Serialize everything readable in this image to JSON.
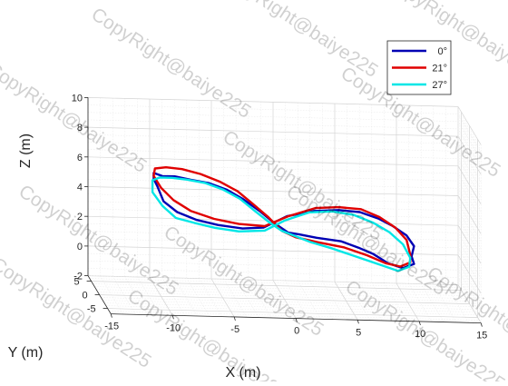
{
  "chart_data": {
    "type": "line",
    "projection": "3d",
    "xlabel": "X (m)",
    "ylabel": "Y (m)",
    "zlabel": "Z (m)",
    "xlim": [
      -15,
      15
    ],
    "ylim": [
      -7,
      7
    ],
    "zlim": [
      -2,
      10
    ],
    "xticks": [
      -15,
      -10,
      -5,
      0,
      5,
      10,
      15
    ],
    "yticks": [
      -5,
      0,
      5
    ],
    "zticks": [
      -2,
      0,
      2,
      4,
      6,
      8,
      10
    ],
    "grid": true,
    "minor_grid": true,
    "legend_position": "top-right",
    "series": [
      {
        "name": "0°",
        "color": "#0000b4",
        "path": [
          [
            -10.3,
            5.4
          ],
          [
            -10.6,
            5.9
          ],
          [
            -10.6,
            6.3
          ],
          [
            -9.9,
            6.1
          ],
          [
            -8.9,
            6.1
          ],
          [
            -7.6,
            5.9
          ],
          [
            -6.1,
            5.7
          ],
          [
            -4.7,
            5.3
          ],
          [
            -3.4,
            4.7
          ],
          [
            -2.0,
            3.9
          ],
          [
            -0.8,
            3.1
          ],
          [
            0.3,
            2.5
          ],
          [
            1.2,
            2.4
          ],
          [
            2.6,
            2.2
          ],
          [
            4.6,
            2.0
          ],
          [
            6.0,
            1.6
          ],
          [
            7.2,
            1.2
          ],
          [
            8.4,
            0.6
          ],
          [
            9.6,
            0.3
          ],
          [
            10.5,
            0.6
          ],
          [
            10.3,
            1.1
          ],
          [
            10.5,
            1.8
          ],
          [
            9.9,
            2.5
          ],
          [
            8.8,
            3.1
          ],
          [
            7.6,
            3.6
          ],
          [
            6.1,
            4.0
          ],
          [
            4.4,
            4.1
          ],
          [
            2.4,
            4.0
          ],
          [
            0.2,
            3.6
          ],
          [
            -1.7,
            2.8
          ],
          [
            -3.4,
            2.7
          ],
          [
            -5.4,
            2.9
          ],
          [
            -7.1,
            3.2
          ],
          [
            -8.7,
            3.7
          ],
          [
            -9.8,
            4.4
          ],
          [
            -10.3,
            5.4
          ]
        ]
      },
      {
        "name": "21°",
        "color": "#e00000",
        "path": [
          [
            -10.5,
            6.6
          ],
          [
            -9.6,
            6.7
          ],
          [
            -8.3,
            6.6
          ],
          [
            -6.8,
            6.3
          ],
          [
            -5.2,
            5.8
          ],
          [
            -3.8,
            5.2
          ],
          [
            -2.6,
            4.4
          ],
          [
            -1.3,
            3.5
          ],
          [
            -0.2,
            2.6
          ],
          [
            0.9,
            2.2
          ],
          [
            2.7,
            1.9
          ],
          [
            4.8,
            1.6
          ],
          [
            6.7,
            1.1
          ],
          [
            8.2,
            0.6
          ],
          [
            9.4,
            0.4
          ],
          [
            10.2,
            0.7
          ],
          [
            10.2,
            1.2
          ],
          [
            9.9,
            2.2
          ],
          [
            9.0,
            3.0
          ],
          [
            7.7,
            3.7
          ],
          [
            6.2,
            4.2
          ],
          [
            4.4,
            4.3
          ],
          [
            2.5,
            4.2
          ],
          [
            0.3,
            3.6
          ],
          [
            -1.6,
            2.9
          ],
          [
            -3.7,
            3.0
          ],
          [
            -5.7,
            3.3
          ],
          [
            -7.6,
            3.8
          ],
          [
            -9.0,
            4.5
          ],
          [
            -10.0,
            5.3
          ],
          [
            -10.6,
            6.1
          ],
          [
            -10.5,
            6.6
          ]
        ]
      },
      {
        "name": "27°",
        "color": "#00e6e6",
        "path": [
          [
            -10.7,
            5.8
          ],
          [
            -10.1,
            6.0
          ],
          [
            -9.1,
            6.0
          ],
          [
            -7.9,
            5.9
          ],
          [
            -6.4,
            5.7
          ],
          [
            -5.0,
            5.3
          ],
          [
            -3.6,
            4.7
          ],
          [
            -2.4,
            3.9
          ],
          [
            -1.3,
            3.2
          ],
          [
            -0.2,
            2.6
          ],
          [
            0.8,
            2.3
          ],
          [
            2.1,
            1.9
          ],
          [
            3.9,
            1.5
          ],
          [
            5.8,
            1.0
          ],
          [
            7.7,
            0.5
          ],
          [
            9.2,
            0.1
          ],
          [
            10.1,
            0.4
          ],
          [
            10.2,
            1.0
          ],
          [
            9.6,
            1.9
          ],
          [
            8.5,
            2.7
          ],
          [
            7.2,
            3.3
          ],
          [
            5.6,
            3.8
          ],
          [
            3.9,
            4.0
          ],
          [
            2.0,
            3.9
          ],
          [
            0.0,
            3.3
          ],
          [
            -1.6,
            2.6
          ],
          [
            -3.7,
            2.5
          ],
          [
            -5.6,
            2.7
          ],
          [
            -7.3,
            3.0
          ],
          [
            -8.8,
            3.3
          ],
          [
            -9.9,
            4.1
          ],
          [
            -10.7,
            5.0
          ],
          [
            -10.7,
            5.8
          ]
        ]
      }
    ]
  },
  "watermark": "CopyRight@baiye225"
}
